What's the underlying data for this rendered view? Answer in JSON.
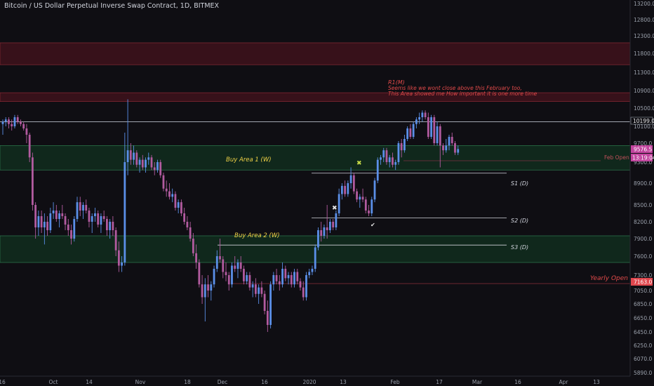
{
  "title": "Bitcoin / US Dollar Perpetual Inverse Swap Contract, 1D, BITMEX",
  "colors": {
    "background": "#0f0e13",
    "up": "#5b8fe8",
    "down": "#b25b9f",
    "red_zone": "#5a1420",
    "green_zone": "#10301f",
    "axis_text": "#9aa0ab",
    "annotation_red": "#e24a4a",
    "annotation_yellow": "#f0d246",
    "badge_magenta": "#c2449e",
    "badge_red": "#e0474e"
  },
  "chart_data": {
    "type": "candlestick",
    "y_ticks": [
      "13200.0",
      "12800.0",
      "12300.0",
      "11800.0",
      "11300.0",
      "10900.0",
      "10500.0",
      "10100.0",
      "9700.0",
      "9300.0",
      "8900.0",
      "8500.0",
      "8200.0",
      "7900.0",
      "7600.0",
      "7300.0",
      "7050.0",
      "6850.0",
      "6650.0",
      "6450.0",
      "6250.0",
      "6070.0",
      "5890.0"
    ],
    "x_ticks": [
      "16",
      "Oct",
      "14",
      "Nov",
      "18",
      "Dec",
      "16",
      "2020",
      "13",
      "Feb",
      "17",
      "Mar",
      "16",
      "Apr",
      "13"
    ],
    "zones": [
      {
        "from": 11500,
        "to": 12100,
        "kind": "red"
      },
      {
        "from": 10650,
        "to": 10850,
        "kind": "red"
      },
      {
        "from": 9150,
        "to": 9650,
        "kind": "green"
      },
      {
        "from": 7500,
        "to": 7950,
        "kind": "green"
      }
    ],
    "levels": [
      {
        "price": 10199,
        "label": ""
      },
      {
        "price": 9090,
        "label": "S1 (D)"
      },
      {
        "price": 8270,
        "label": "S2 (D)"
      },
      {
        "price": 7790,
        "label": "S3 (D)"
      },
      {
        "price": 9330,
        "label": "Feb Open"
      },
      {
        "price": 7163,
        "label": "Yearly Open"
      }
    ],
    "annotations": {
      "r1_title": "R1(M)",
      "r1_line1": "Seems like we wont close above this February too,",
      "r1_line2": "This Area showed me How important it is one more time",
      "buy1": "Buy Area 1 (W)",
      "buy2": "Buy Area 2 (W)",
      "s1": "S1 (D)",
      "s2": "S2 (D)",
      "s3": "S3 (D)",
      "feb_open": "Feb Open",
      "yearly_open": "Yearly Open"
    },
    "badges": {
      "b10199": "10199.0",
      "b9576": "9576.5",
      "btime": "13:19:04",
      "b7163": "7163.0"
    },
    "candles": [
      {
        "o": 10150,
        "h": 10250,
        "l": 9900,
        "c": 10200
      },
      {
        "o": 10200,
        "h": 10300,
        "l": 10100,
        "c": 10250
      },
      {
        "o": 10250,
        "h": 10300,
        "l": 10050,
        "c": 10150
      },
      {
        "o": 10150,
        "h": 10250,
        "l": 10000,
        "c": 10100
      },
      {
        "o": 10100,
        "h": 10350,
        "l": 10050,
        "c": 10300
      },
      {
        "o": 10300,
        "h": 10350,
        "l": 10150,
        "c": 10200
      },
      {
        "o": 10200,
        "h": 10250,
        "l": 10100,
        "c": 10150
      },
      {
        "o": 10150,
        "h": 10200,
        "l": 10000,
        "c": 10050
      },
      {
        "o": 10050,
        "h": 10150,
        "l": 9700,
        "c": 9900
      },
      {
        "o": 9900,
        "h": 9950,
        "l": 9300,
        "c": 9400
      },
      {
        "o": 9400,
        "h": 9500,
        "l": 8400,
        "c": 8500
      },
      {
        "o": 8500,
        "h": 8550,
        "l": 7900,
        "c": 8100
      },
      {
        "o": 8100,
        "h": 8400,
        "l": 7950,
        "c": 8300
      },
      {
        "o": 8300,
        "h": 8400,
        "l": 8000,
        "c": 8100
      },
      {
        "o": 8100,
        "h": 8350,
        "l": 7800,
        "c": 8200
      },
      {
        "o": 8200,
        "h": 8300,
        "l": 7950,
        "c": 8050
      },
      {
        "o": 8050,
        "h": 8450,
        "l": 8000,
        "c": 8350
      },
      {
        "o": 8350,
        "h": 8550,
        "l": 8250,
        "c": 8400
      },
      {
        "o": 8400,
        "h": 8500,
        "l": 8200,
        "c": 8250
      },
      {
        "o": 8250,
        "h": 8400,
        "l": 8100,
        "c": 8350
      },
      {
        "o": 8350,
        "h": 8500,
        "l": 8250,
        "c": 8300
      },
      {
        "o": 8300,
        "h": 8350,
        "l": 8050,
        "c": 8150
      },
      {
        "o": 8150,
        "h": 8250,
        "l": 7950,
        "c": 8050
      },
      {
        "o": 8050,
        "h": 8150,
        "l": 7800,
        "c": 7900
      },
      {
        "o": 7900,
        "h": 8300,
        "l": 7850,
        "c": 8250
      },
      {
        "o": 8250,
        "h": 8650,
        "l": 8200,
        "c": 8550
      },
      {
        "o": 8550,
        "h": 8650,
        "l": 8300,
        "c": 8400
      },
      {
        "o": 8400,
        "h": 8550,
        "l": 8250,
        "c": 8500
      },
      {
        "o": 8500,
        "h": 8600,
        "l": 8350,
        "c": 8400
      },
      {
        "o": 8400,
        "h": 8450,
        "l": 8100,
        "c": 8200
      },
      {
        "o": 8200,
        "h": 8350,
        "l": 8000,
        "c": 8300
      },
      {
        "o": 8300,
        "h": 8450,
        "l": 8200,
        "c": 8350
      },
      {
        "o": 8350,
        "h": 8400,
        "l": 8100,
        "c": 8150
      },
      {
        "o": 8150,
        "h": 8350,
        "l": 8000,
        "c": 8300
      },
      {
        "o": 8300,
        "h": 8400,
        "l": 8200,
        "c": 8250
      },
      {
        "o": 8250,
        "h": 8300,
        "l": 7950,
        "c": 8050
      },
      {
        "o": 8050,
        "h": 8250,
        "l": 7900,
        "c": 8200
      },
      {
        "o": 8200,
        "h": 8300,
        "l": 7950,
        "c": 8050
      },
      {
        "o": 8050,
        "h": 8100,
        "l": 7600,
        "c": 7700
      },
      {
        "o": 7700,
        "h": 7850,
        "l": 7350,
        "c": 7450
      },
      {
        "o": 7450,
        "h": 7600,
        "l": 7350,
        "c": 7500
      },
      {
        "o": 7500,
        "h": 9950,
        "l": 7450,
        "c": 9300
      },
      {
        "o": 9300,
        "h": 10700,
        "l": 9050,
        "c": 9550
      },
      {
        "o": 9550,
        "h": 9700,
        "l": 9250,
        "c": 9350
      },
      {
        "o": 9350,
        "h": 9650,
        "l": 9250,
        "c": 9500
      },
      {
        "o": 9500,
        "h": 9550,
        "l": 9200,
        "c": 9250
      },
      {
        "o": 9250,
        "h": 9400,
        "l": 9100,
        "c": 9350
      },
      {
        "o": 9350,
        "h": 9450,
        "l": 9150,
        "c": 9200
      },
      {
        "o": 9200,
        "h": 9400,
        "l": 9100,
        "c": 9350
      },
      {
        "o": 9350,
        "h": 9500,
        "l": 9250,
        "c": 9400
      },
      {
        "o": 9400,
        "h": 9450,
        "l": 9150,
        "c": 9200
      },
      {
        "o": 9200,
        "h": 9300,
        "l": 9050,
        "c": 9150
      },
      {
        "o": 9150,
        "h": 9350,
        "l": 9100,
        "c": 9300
      },
      {
        "o": 9300,
        "h": 9350,
        "l": 9000,
        "c": 9050
      },
      {
        "o": 9050,
        "h": 9100,
        "l": 8750,
        "c": 8800
      },
      {
        "o": 8800,
        "h": 8950,
        "l": 8650,
        "c": 8750
      },
      {
        "o": 8750,
        "h": 8900,
        "l": 8600,
        "c": 8650
      },
      {
        "o": 8650,
        "h": 8800,
        "l": 8550,
        "c": 8700
      },
      {
        "o": 8700,
        "h": 8750,
        "l": 8400,
        "c": 8450
      },
      {
        "o": 8450,
        "h": 8600,
        "l": 8350,
        "c": 8550
      },
      {
        "o": 8550,
        "h": 8600,
        "l": 8300,
        "c": 8350
      },
      {
        "o": 8350,
        "h": 8450,
        "l": 8150,
        "c": 8200
      },
      {
        "o": 8200,
        "h": 8300,
        "l": 8050,
        "c": 8100
      },
      {
        "o": 8100,
        "h": 8200,
        "l": 7850,
        "c": 7900
      },
      {
        "o": 7900,
        "h": 8000,
        "l": 7600,
        "c": 7650
      },
      {
        "o": 7650,
        "h": 7800,
        "l": 7400,
        "c": 7500
      },
      {
        "o": 7500,
        "h": 7550,
        "l": 7100,
        "c": 7150
      },
      {
        "o": 7150,
        "h": 7300,
        "l": 6850,
        "c": 6950
      },
      {
        "o": 6950,
        "h": 7250,
        "l": 6600,
        "c": 7150
      },
      {
        "o": 7150,
        "h": 7300,
        "l": 6950,
        "c": 7050
      },
      {
        "o": 7050,
        "h": 7200,
        "l": 6900,
        "c": 7150
      },
      {
        "o": 7150,
        "h": 7450,
        "l": 7100,
        "c": 7400
      },
      {
        "o": 7400,
        "h": 7700,
        "l": 7350,
        "c": 7600
      },
      {
        "o": 7600,
        "h": 7900,
        "l": 7500,
        "c": 7550
      },
      {
        "o": 7550,
        "h": 7600,
        "l": 7250,
        "c": 7350
      },
      {
        "o": 7350,
        "h": 7500,
        "l": 7200,
        "c": 7300
      },
      {
        "o": 7300,
        "h": 7350,
        "l": 7050,
        "c": 7150
      },
      {
        "o": 7150,
        "h": 7500,
        "l": 7100,
        "c": 7450
      },
      {
        "o": 7450,
        "h": 7600,
        "l": 7350,
        "c": 7400
      },
      {
        "o": 7400,
        "h": 7550,
        "l": 7250,
        "c": 7500
      },
      {
        "o": 7500,
        "h": 7600,
        "l": 7350,
        "c": 7400
      },
      {
        "o": 7400,
        "h": 7450,
        "l": 7150,
        "c": 7200
      },
      {
        "o": 7200,
        "h": 7350,
        "l": 7150,
        "c": 7300
      },
      {
        "o": 7300,
        "h": 7350,
        "l": 7050,
        "c": 7100
      },
      {
        "o": 7100,
        "h": 7200,
        "l": 6950,
        "c": 7150
      },
      {
        "o": 7150,
        "h": 7250,
        "l": 6950,
        "c": 7000
      },
      {
        "o": 7000,
        "h": 7150,
        "l": 6850,
        "c": 7100
      },
      {
        "o": 7100,
        "h": 7200,
        "l": 6950,
        "c": 7000
      },
      {
        "o": 7000,
        "h": 7050,
        "l": 6700,
        "c": 6750
      },
      {
        "o": 6750,
        "h": 6900,
        "l": 6450,
        "c": 6550
      },
      {
        "o": 6550,
        "h": 7200,
        "l": 6500,
        "c": 7150
      },
      {
        "o": 7150,
        "h": 7350,
        "l": 7050,
        "c": 7300
      },
      {
        "o": 7300,
        "h": 7400,
        "l": 7150,
        "c": 7200
      },
      {
        "o": 7200,
        "h": 7300,
        "l": 7050,
        "c": 7150
      },
      {
        "o": 7150,
        "h": 7500,
        "l": 7100,
        "c": 7400
      },
      {
        "o": 7400,
        "h": 7450,
        "l": 7200,
        "c": 7250
      },
      {
        "o": 7250,
        "h": 7350,
        "l": 7150,
        "c": 7300
      },
      {
        "o": 7300,
        "h": 7350,
        "l": 7100,
        "c": 7150
      },
      {
        "o": 7150,
        "h": 7400,
        "l": 7100,
        "c": 7350
      },
      {
        "o": 7350,
        "h": 7400,
        "l": 7150,
        "c": 7200
      },
      {
        "o": 7200,
        "h": 7250,
        "l": 7050,
        "c": 7100
      },
      {
        "o": 7100,
        "h": 7200,
        "l": 6900,
        "c": 6950
      },
      {
        "o": 6950,
        "h": 7350,
        "l": 6900,
        "c": 7300
      },
      {
        "o": 7300,
        "h": 7400,
        "l": 7250,
        "c": 7350
      },
      {
        "o": 7350,
        "h": 7450,
        "l": 7300,
        "c": 7400
      },
      {
        "o": 7400,
        "h": 7800,
        "l": 7350,
        "c": 7750
      },
      {
        "o": 7750,
        "h": 8100,
        "l": 7700,
        "c": 8050
      },
      {
        "o": 8050,
        "h": 8200,
        "l": 7850,
        "c": 7950
      },
      {
        "o": 7950,
        "h": 8150,
        "l": 7900,
        "c": 8100
      },
      {
        "o": 8100,
        "h": 8500,
        "l": 7900,
        "c": 8050
      },
      {
        "o": 8050,
        "h": 8250,
        "l": 8000,
        "c": 8200
      },
      {
        "o": 8200,
        "h": 8250,
        "l": 8050,
        "c": 8100
      },
      {
        "o": 8100,
        "h": 8400,
        "l": 8050,
        "c": 8350
      },
      {
        "o": 8350,
        "h": 8800,
        "l": 8300,
        "c": 8700
      },
      {
        "o": 8700,
        "h": 8900,
        "l": 8600,
        "c": 8850
      },
      {
        "o": 8850,
        "h": 8950,
        "l": 8650,
        "c": 8700
      },
      {
        "o": 8700,
        "h": 8950,
        "l": 8650,
        "c": 8900
      },
      {
        "o": 8900,
        "h": 9200,
        "l": 8800,
        "c": 9050
      },
      {
        "o": 9050,
        "h": 9100,
        "l": 8700,
        "c": 8750
      },
      {
        "o": 8750,
        "h": 8800,
        "l": 8550,
        "c": 8600
      },
      {
        "o": 8600,
        "h": 8700,
        "l": 8450,
        "c": 8650
      },
      {
        "o": 8650,
        "h": 8800,
        "l": 8550,
        "c": 8600
      },
      {
        "o": 8600,
        "h": 8650,
        "l": 8350,
        "c": 8400
      },
      {
        "o": 8400,
        "h": 8500,
        "l": 8300,
        "c": 8350
      },
      {
        "o": 8350,
        "h": 8650,
        "l": 8300,
        "c": 8600
      },
      {
        "o": 8600,
        "h": 9000,
        "l": 8550,
        "c": 8950
      },
      {
        "o": 8950,
        "h": 9400,
        "l": 8900,
        "c": 9350
      },
      {
        "o": 9350,
        "h": 9450,
        "l": 9250,
        "c": 9400
      },
      {
        "o": 9400,
        "h": 9600,
        "l": 9300,
        "c": 9550
      },
      {
        "o": 9550,
        "h": 9600,
        "l": 9250,
        "c": 9300
      },
      {
        "o": 9300,
        "h": 9450,
        "l": 9200,
        "c": 9400
      },
      {
        "o": 9400,
        "h": 9500,
        "l": 9200,
        "c": 9250
      },
      {
        "o": 9250,
        "h": 9350,
        "l": 9150,
        "c": 9300
      },
      {
        "o": 9300,
        "h": 9750,
        "l": 9250,
        "c": 9700
      },
      {
        "o": 9700,
        "h": 9800,
        "l": 9400,
        "c": 9550
      },
      {
        "o": 9550,
        "h": 9900,
        "l": 9500,
        "c": 9800
      },
      {
        "o": 9800,
        "h": 10100,
        "l": 9750,
        "c": 10050
      },
      {
        "o": 10050,
        "h": 10150,
        "l": 9800,
        "c": 9850
      },
      {
        "o": 9850,
        "h": 10200,
        "l": 9800,
        "c": 10150
      },
      {
        "o": 10150,
        "h": 10300,
        "l": 10050,
        "c": 10250
      },
      {
        "o": 10250,
        "h": 10400,
        "l": 10150,
        "c": 10300
      },
      {
        "o": 10300,
        "h": 10450,
        "l": 10200,
        "c": 10400
      },
      {
        "o": 10400,
        "h": 10450,
        "l": 10250,
        "c": 10300
      },
      {
        "o": 10300,
        "h": 10400,
        "l": 9800,
        "c": 9850
      },
      {
        "o": 9850,
        "h": 10350,
        "l": 9800,
        "c": 10300
      },
      {
        "o": 10300,
        "h": 10350,
        "l": 9650,
        "c": 9700
      },
      {
        "o": 9700,
        "h": 10200,
        "l": 9650,
        "c": 10100
      },
      {
        "o": 10100,
        "h": 10150,
        "l": 9200,
        "c": 9650
      },
      {
        "o": 9650,
        "h": 9700,
        "l": 9450,
        "c": 9550
      },
      {
        "o": 9550,
        "h": 9800,
        "l": 9500,
        "c": 9650
      },
      {
        "o": 9650,
        "h": 9900,
        "l": 9550,
        "c": 9850
      },
      {
        "o": 9850,
        "h": 9950,
        "l": 9650,
        "c": 9700
      },
      {
        "o": 9700,
        "h": 9750,
        "l": 9450,
        "c": 9500
      },
      {
        "o": 9500,
        "h": 9650,
        "l": 9450,
        "c": 9576
      }
    ]
  }
}
